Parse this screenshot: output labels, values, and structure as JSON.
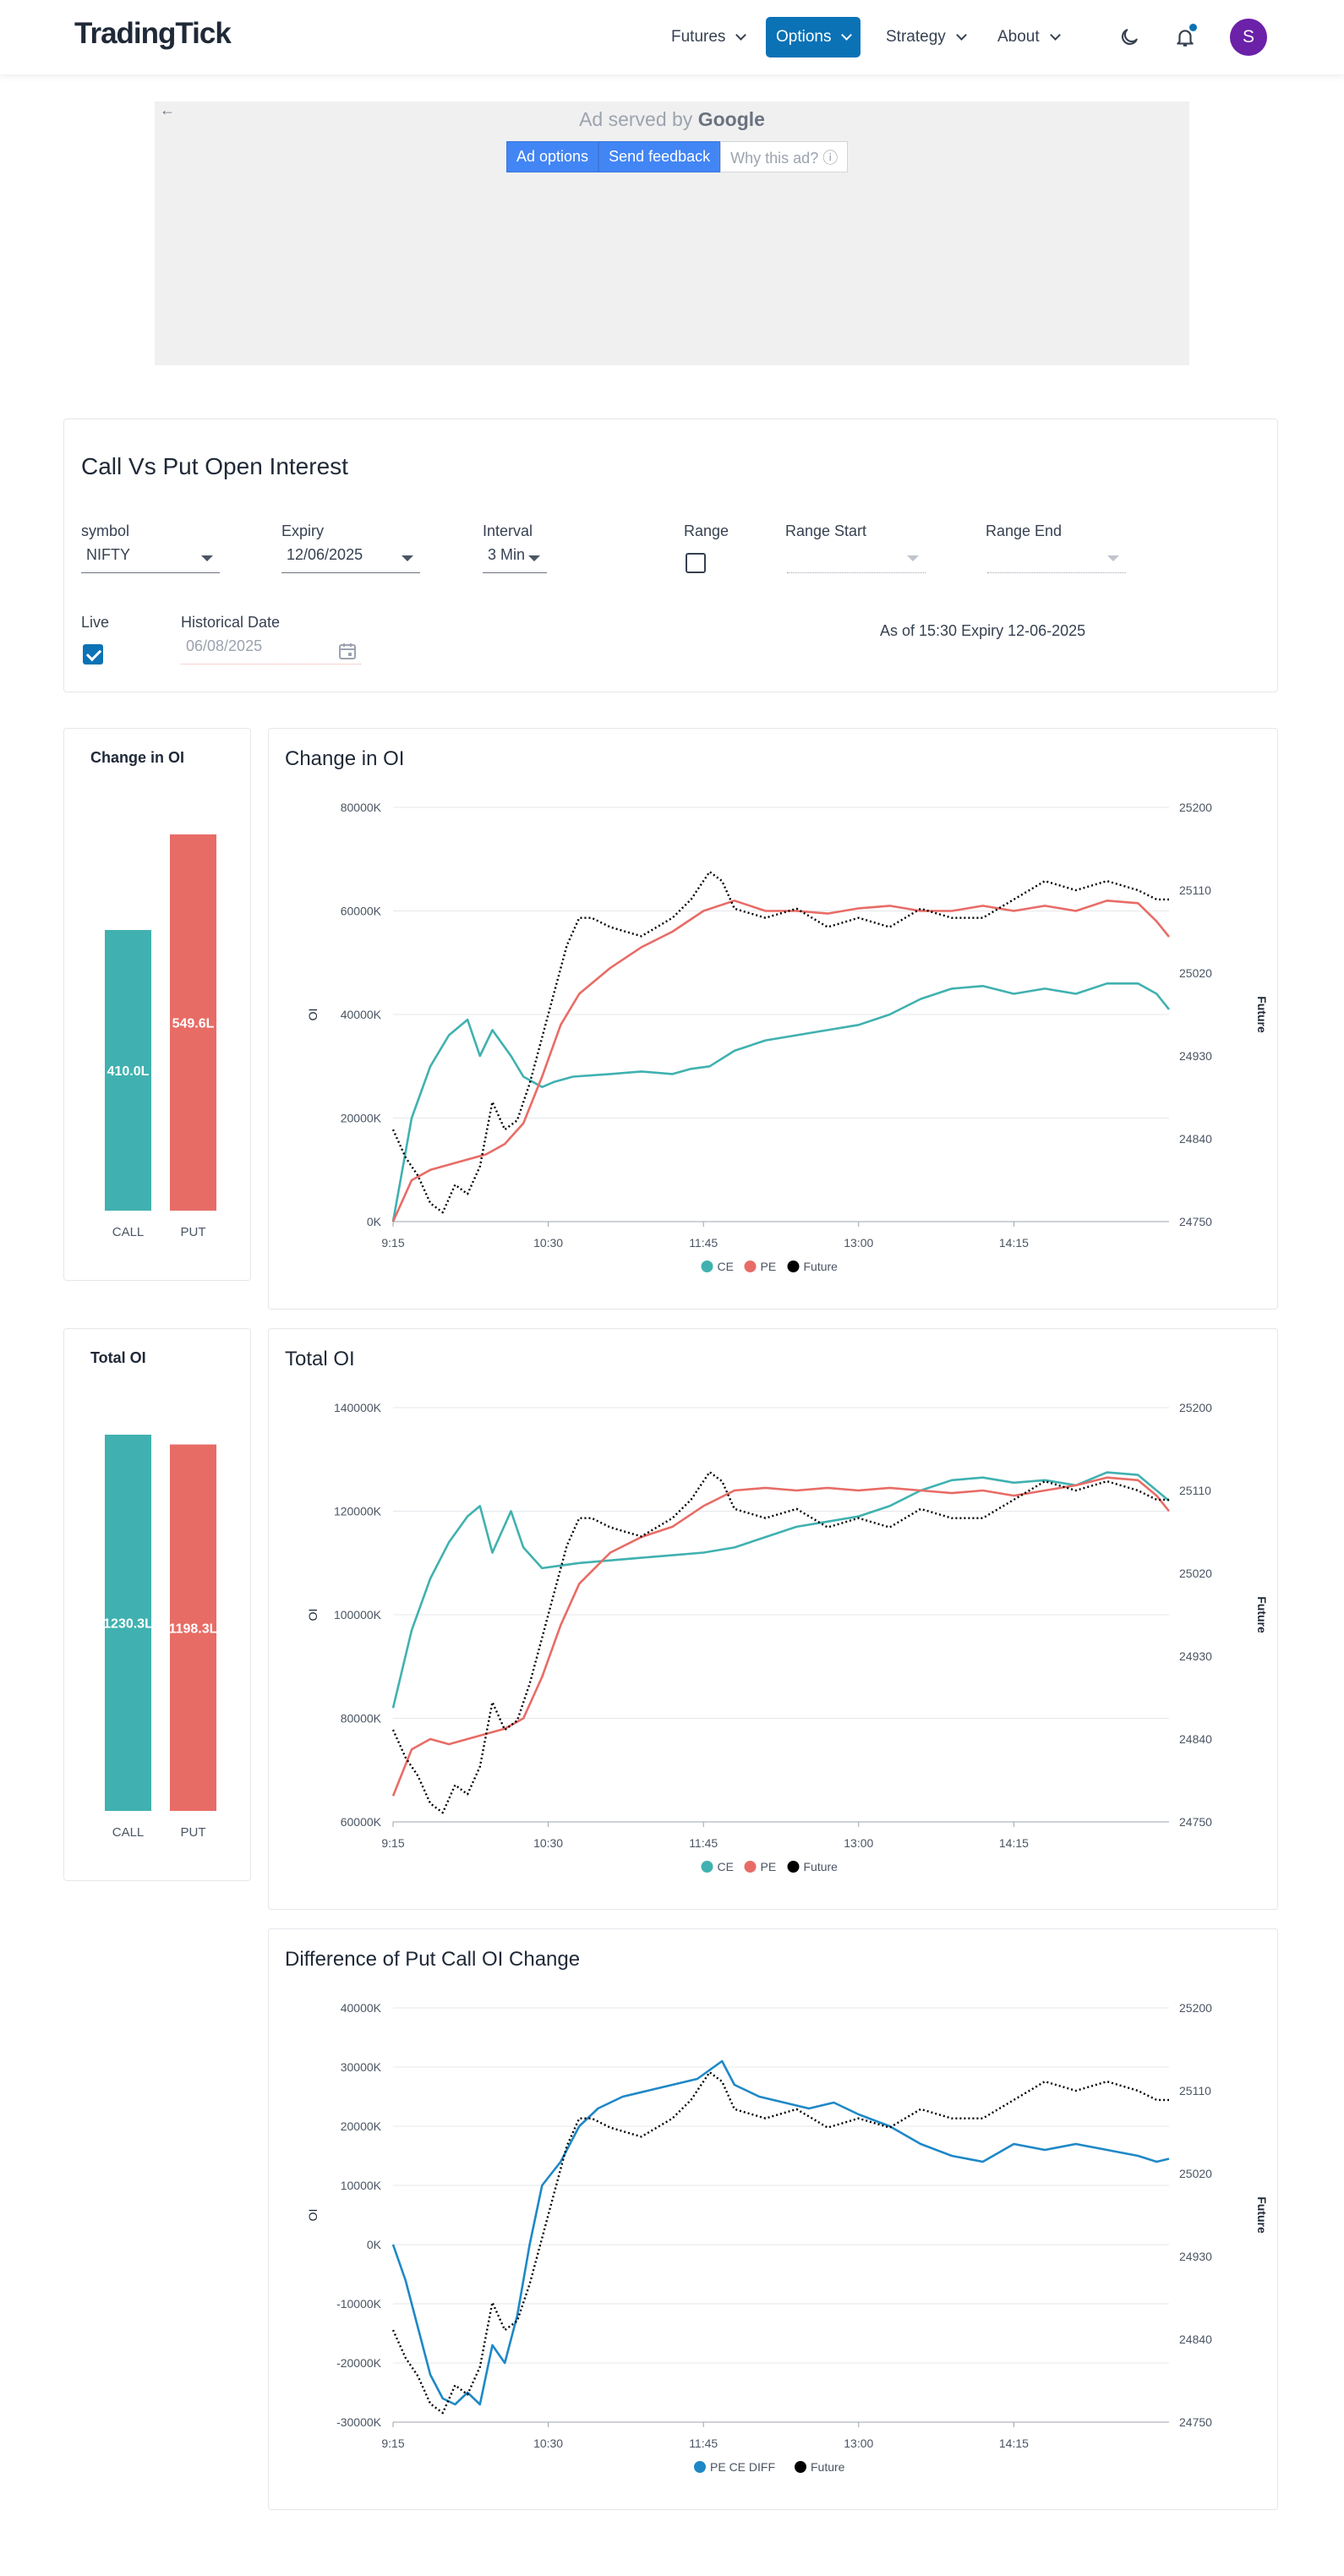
{
  "header": {
    "logo": "TradingTick",
    "nav": [
      {
        "label": "Futures",
        "active": false
      },
      {
        "label": "Options",
        "active": true
      },
      {
        "label": "Strategy",
        "active": false
      },
      {
        "label": "About",
        "active": false
      }
    ],
    "icons": [
      "moon-icon",
      "bell-icon"
    ],
    "avatar_initial": "S",
    "accent": "#0b72b5"
  },
  "ad": {
    "served_prefix": "Ad served by",
    "served_brand": "Google",
    "options_label": "Ad options",
    "feedback_label": "Send feedback",
    "why_label": "Why this ad? ⓘ",
    "back_icon": "arrow-left-icon"
  },
  "filters": {
    "title": "Call Vs Put Open Interest",
    "symbol_label": "symbol",
    "symbol_value": "NIFTY",
    "expiry_label": "Expiry",
    "expiry_value": "12/06/2025",
    "interval_label": "Interval",
    "interval_value": "3 Min",
    "range_label": "Range",
    "range_checked": false,
    "range_start_label": "Range Start",
    "range_start_value": "",
    "range_end_label": "Range End",
    "range_end_value": "",
    "live_label": "Live",
    "live_checked": true,
    "historical_label": "Historical Date",
    "historical_value": "06/08/2025",
    "as_of_text": "As of 15:30 Expiry 12-06-2025"
  },
  "change_summary": {
    "title": "Change in OI",
    "bars": [
      {
        "label": "CALL",
        "value": 410.0,
        "text": "410.0L",
        "color": "#40b1b0"
      },
      {
        "label": "PUT",
        "value": 549.6,
        "text": "549.6L",
        "color": "#e86c66"
      }
    ]
  },
  "total_summary": {
    "title": "Total OI",
    "bars": [
      {
        "label": "CALL",
        "value": 1230.3,
        "text": "1230.3L",
        "color": "#40b1b0"
      },
      {
        "label": "PUT",
        "value": 1198.3,
        "text": "1198.3L",
        "color": "#e86c66"
      }
    ]
  },
  "chart_data": [
    {
      "type": "line",
      "title": "Change in OI",
      "ylabel": "OI",
      "y2label": "Future",
      "ylim": [
        0,
        80000
      ],
      "y2lim": [
        24750,
        25200
      ],
      "yticks": [
        "80000K",
        "60000K",
        "40000K",
        "20000K",
        "0K"
      ],
      "y2ticks": [
        "25200",
        "25110",
        "25020",
        "24930",
        "24840",
        "24750"
      ],
      "xticks": [
        "9:15",
        "10:30",
        "11:45",
        "13:00",
        "14:15"
      ],
      "x_range": [
        "9:15",
        "15:30"
      ],
      "grid": true,
      "legend": "bottom",
      "series": [
        {
          "name": "CE",
          "axis": "left",
          "color": "#40b1b0",
          "x": [
            "9:15",
            "9:24",
            "9:33",
            "9:42",
            "9:51",
            "9:57",
            "10:03",
            "10:12",
            "10:18",
            "10:27",
            "10:33",
            "10:42",
            "11:00",
            "11:15",
            "11:30",
            "11:39",
            "11:48",
            "12:00",
            "12:15",
            "12:30",
            "12:45",
            "13:00",
            "13:15",
            "13:30",
            "13:45",
            "14:00",
            "14:15",
            "14:30",
            "14:45",
            "15:00",
            "15:15",
            "15:24",
            "15:30"
          ],
          "values": [
            0,
            20000,
            30000,
            36000,
            39000,
            32000,
            37000,
            32000,
            28000,
            26000,
            27000,
            28000,
            28500,
            29000,
            28500,
            29500,
            30000,
            33000,
            35000,
            36000,
            37000,
            38000,
            40000,
            43000,
            45000,
            45500,
            44000,
            45000,
            44000,
            46000,
            46000,
            44000,
            41000
          ]
        },
        {
          "name": "PE",
          "axis": "left",
          "color": "#e86c66",
          "x": [
            "9:15",
            "9:24",
            "9:33",
            "9:42",
            "9:51",
            "10:00",
            "10:09",
            "10:18",
            "10:27",
            "10:36",
            "10:45",
            "11:00",
            "11:15",
            "11:30",
            "11:45",
            "12:00",
            "12:15",
            "12:30",
            "12:45",
            "13:00",
            "13:15",
            "13:30",
            "13:45",
            "14:00",
            "14:15",
            "14:30",
            "14:45",
            "15:00",
            "15:15",
            "15:24",
            "15:30"
          ],
          "values": [
            0,
            8000,
            10000,
            11000,
            12000,
            13000,
            15000,
            19000,
            28000,
            38000,
            44000,
            49000,
            53000,
            56000,
            60000,
            62000,
            60000,
            60000,
            59500,
            60500,
            61000,
            60000,
            60000,
            61000,
            60000,
            61000,
            60000,
            62000,
            61500,
            58000,
            55000
          ]
        },
        {
          "name": "Future",
          "axis": "right",
          "color": "#000000",
          "dash": true,
          "x": [
            "9:15",
            "9:21",
            "9:27",
            "9:33",
            "9:39",
            "9:45",
            "9:51",
            "9:57",
            "10:03",
            "10:09",
            "10:15",
            "10:21",
            "10:27",
            "10:33",
            "10:39",
            "10:45",
            "10:51",
            "11:00",
            "11:15",
            "11:30",
            "11:39",
            "11:48",
            "11:54",
            "12:00",
            "12:15",
            "12:30",
            "12:45",
            "13:00",
            "13:15",
            "13:30",
            "13:45",
            "14:00",
            "14:15",
            "14:30",
            "14:45",
            "15:00",
            "15:15",
            "15:24",
            "15:30"
          ],
          "values": [
            24850,
            24820,
            24800,
            24770,
            24760,
            24790,
            24780,
            24810,
            24880,
            24850,
            24860,
            24900,
            24950,
            25000,
            25050,
            25080,
            25080,
            25070,
            25060,
            25080,
            25100,
            25130,
            25120,
            25090,
            25080,
            25090,
            25070,
            25080,
            25070,
            25090,
            25080,
            25080,
            25100,
            25120,
            25110,
            25120,
            25110,
            25100,
            25100
          ]
        }
      ]
    },
    {
      "type": "line",
      "title": "Total OI",
      "ylabel": "OI",
      "y2label": "Future",
      "ylim": [
        60000,
        140000
      ],
      "y2lim": [
        24750,
        25200
      ],
      "yticks": [
        "140000K",
        "120000K",
        "100000K",
        "80000K",
        "60000K"
      ],
      "y2ticks": [
        "25200",
        "25110",
        "25020",
        "24930",
        "24840",
        "24750"
      ],
      "xticks": [
        "9:15",
        "10:30",
        "11:45",
        "13:00",
        "14:15"
      ],
      "x_range": [
        "9:15",
        "15:30"
      ],
      "grid": true,
      "legend": "bottom",
      "series": [
        {
          "name": "CE",
          "axis": "left",
          "color": "#40b1b0",
          "x": [
            "9:15",
            "9:24",
            "9:33",
            "9:42",
            "9:51",
            "9:57",
            "10:03",
            "10:12",
            "10:18",
            "10:27",
            "10:36",
            "10:45",
            "11:00",
            "11:15",
            "11:30",
            "11:45",
            "12:00",
            "12:15",
            "12:30",
            "12:45",
            "13:00",
            "13:15",
            "13:30",
            "13:45",
            "14:00",
            "14:15",
            "14:30",
            "14:45",
            "15:00",
            "15:15",
            "15:24",
            "15:30"
          ],
          "values": [
            82000,
            97000,
            107000,
            114000,
            119000,
            121000,
            112000,
            120000,
            113000,
            109000,
            109500,
            110000,
            110500,
            111000,
            111500,
            112000,
            113000,
            115000,
            117000,
            118000,
            119000,
            121000,
            124000,
            126000,
            126500,
            125500,
            126000,
            125000,
            127500,
            127000,
            124000,
            122000
          ]
        },
        {
          "name": "PE",
          "axis": "left",
          "color": "#e86c66",
          "x": [
            "9:15",
            "9:24",
            "9:33",
            "9:42",
            "9:51",
            "10:00",
            "10:09",
            "10:18",
            "10:27",
            "10:36",
            "10:45",
            "11:00",
            "11:15",
            "11:30",
            "11:45",
            "12:00",
            "12:15",
            "12:30",
            "12:45",
            "13:00",
            "13:15",
            "13:30",
            "13:45",
            "14:00",
            "14:15",
            "14:30",
            "14:45",
            "15:00",
            "15:15",
            "15:24",
            "15:30"
          ],
          "values": [
            65000,
            74000,
            76000,
            75000,
            76000,
            77000,
            78000,
            80000,
            88000,
            98000,
            106000,
            112000,
            115000,
            117000,
            121000,
            124000,
            124500,
            124000,
            124500,
            124000,
            124500,
            124000,
            123500,
            124000,
            123000,
            124000,
            125000,
            126500,
            126000,
            123000,
            120000
          ]
        },
        {
          "name": "Future",
          "axis": "right",
          "color": "#000000",
          "dash": true,
          "x": [
            "9:15",
            "9:21",
            "9:27",
            "9:33",
            "9:39",
            "9:45",
            "9:51",
            "9:57",
            "10:03",
            "10:09",
            "10:15",
            "10:21",
            "10:27",
            "10:33",
            "10:39",
            "10:45",
            "10:51",
            "11:00",
            "11:15",
            "11:30",
            "11:39",
            "11:48",
            "11:54",
            "12:00",
            "12:15",
            "12:30",
            "12:45",
            "13:00",
            "13:15",
            "13:30",
            "13:45",
            "14:00",
            "14:15",
            "14:30",
            "14:45",
            "15:00",
            "15:15",
            "15:24",
            "15:30"
          ],
          "values": [
            24850,
            24820,
            24800,
            24770,
            24760,
            24790,
            24780,
            24810,
            24880,
            24850,
            24860,
            24900,
            24950,
            25000,
            25050,
            25080,
            25080,
            25070,
            25060,
            25080,
            25100,
            25130,
            25120,
            25090,
            25080,
            25090,
            25070,
            25080,
            25070,
            25090,
            25080,
            25080,
            25100,
            25120,
            25110,
            25120,
            25110,
            25100,
            25100
          ]
        }
      ]
    },
    {
      "type": "line",
      "title": "Difference of Put Call OI Change",
      "ylabel": "OI",
      "y2label": "Future",
      "ylim": [
        -30000,
        40000
      ],
      "y2lim": [
        24750,
        25200
      ],
      "yticks": [
        "40000K",
        "30000K",
        "20000K",
        "10000K",
        "0K",
        "-10000K",
        "-20000K",
        "-30000K"
      ],
      "y2ticks": [
        "25200",
        "25110",
        "25020",
        "24930",
        "24840",
        "24750"
      ],
      "xticks": [
        "9:15",
        "10:30",
        "11:45",
        "13:00",
        "14:15"
      ],
      "x_range": [
        "9:15",
        "15:30"
      ],
      "grid": true,
      "legend": "bottom",
      "series": [
        {
          "name": "PE CE DIFF",
          "axis": "left",
          "color": "#1e88c7",
          "x": [
            "9:15",
            "9:21",
            "9:27",
            "9:33",
            "9:39",
            "9:45",
            "9:51",
            "9:57",
            "10:03",
            "10:09",
            "10:15",
            "10:21",
            "10:27",
            "10:36",
            "10:45",
            "10:54",
            "11:06",
            "11:18",
            "11:30",
            "11:42",
            "11:54",
            "12:00",
            "12:06",
            "12:12",
            "12:24",
            "12:36",
            "12:48",
            "13:00",
            "13:15",
            "13:30",
            "13:45",
            "14:00",
            "14:15",
            "14:30",
            "14:45",
            "15:00",
            "15:15",
            "15:24",
            "15:30"
          ],
          "values": [
            0,
            -6000,
            -14000,
            -22000,
            -26000,
            -27000,
            -25000,
            -27000,
            -17000,
            -20000,
            -12000,
            0,
            10000,
            14000,
            20000,
            23000,
            25000,
            26000,
            27000,
            28000,
            31000,
            27000,
            26000,
            25000,
            24000,
            23000,
            24000,
            22000,
            20000,
            17000,
            15000,
            14000,
            17000,
            16000,
            17000,
            16000,
            15000,
            14000,
            14500
          ]
        },
        {
          "name": "Future",
          "axis": "right",
          "color": "#000000",
          "dash": true,
          "x": [
            "9:15",
            "9:21",
            "9:27",
            "9:33",
            "9:39",
            "9:45",
            "9:51",
            "9:57",
            "10:03",
            "10:09",
            "10:15",
            "10:21",
            "10:27",
            "10:33",
            "10:39",
            "10:45",
            "10:51",
            "11:00",
            "11:15",
            "11:30",
            "11:39",
            "11:48",
            "11:54",
            "12:00",
            "12:15",
            "12:30",
            "12:45",
            "13:00",
            "13:15",
            "13:30",
            "13:45",
            "14:00",
            "14:15",
            "14:30",
            "14:45",
            "15:00",
            "15:15",
            "15:24",
            "15:30"
          ],
          "values": [
            24850,
            24820,
            24800,
            24770,
            24760,
            24790,
            24780,
            24810,
            24880,
            24850,
            24860,
            24900,
            24950,
            25000,
            25050,
            25080,
            25080,
            25070,
            25060,
            25080,
            25100,
            25130,
            25120,
            25090,
            25080,
            25090,
            25070,
            25080,
            25070,
            25090,
            25080,
            25080,
            25100,
            25120,
            25110,
            25120,
            25110,
            25100,
            25100
          ]
        }
      ]
    }
  ]
}
